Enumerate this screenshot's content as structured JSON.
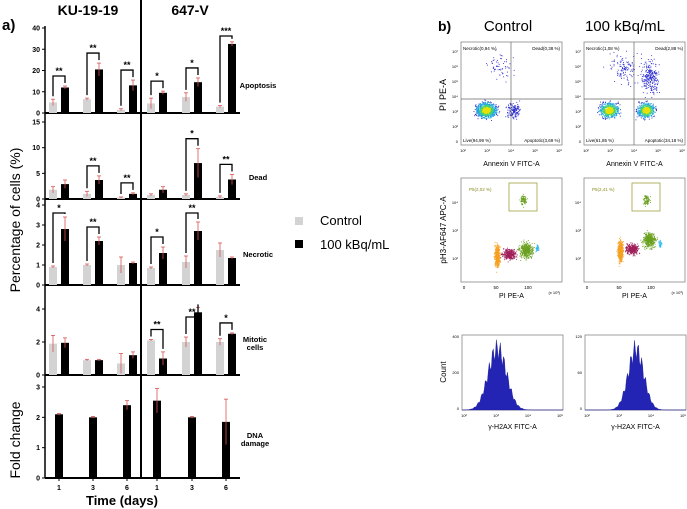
{
  "chart_data": [
    {
      "type": "bar",
      "panel_label": "a)",
      "cell_lines": [
        "KU-19-19",
        "647-V"
      ],
      "categories": [
        "1",
        "3",
        "6"
      ],
      "xlabel": "Time (days)",
      "ylabel_percentage": "Percentage of cells (%)",
      "ylabel_fold": "Fold change",
      "legend": {
        "placement": "right",
        "entries": [
          {
            "name": "Control",
            "color": "#d3d3d3"
          },
          {
            "name": "100 kBq/mL",
            "color": "#000000"
          }
        ]
      },
      "error_bar_color": "#d9534f",
      "rows": [
        {
          "label": "Apoptosis",
          "ylim": [
            0,
            40
          ],
          "yticks": [
            "0",
            "10",
            "20",
            "30",
            "40"
          ],
          "control": {
            "values": [
              5,
              6.5,
              1.5,
              4.5,
              7.5,
              3
            ],
            "errors": [
              1.5,
              0.5,
              0.5,
              2.5,
              2,
              0.5
            ]
          },
          "treated": {
            "values": [
              12,
              20.5,
              13,
              9.5,
              14.5,
              32.5
            ],
            "errors": [
              0.7,
              3,
              2.5,
              0.8,
              2,
              1
            ]
          },
          "significance": [
            "**",
            "**",
            "**",
            "*",
            "*",
            "***"
          ]
        },
        {
          "label": "Dead",
          "ylim": [
            0,
            15
          ],
          "yticks": [
            "0",
            "5",
            "10",
            "15"
          ],
          "control": {
            "values": [
              1.8,
              1,
              0.3,
              0.8,
              0.8,
              0.4
            ],
            "errors": [
              0.6,
              0.5,
              0.1,
              0.2,
              0.2,
              0.2
            ]
          },
          "treated": {
            "values": [
              2.9,
              3.7,
              1.0,
              1.8,
              7,
              3.8
            ],
            "errors": [
              0.8,
              0.8,
              0.2,
              0.6,
              2.8,
              1
            ]
          },
          "significance": [
            "",
            "**",
            "**",
            "",
            "*",
            "**"
          ]
        },
        {
          "label": "Necrotic",
          "ylim": [
            0,
            4
          ],
          "yticks": [
            "0",
            "1",
            "2",
            "3",
            "4"
          ],
          "control": {
            "values": [
              0.9,
              1,
              1,
              0.85,
              1.15,
              1.75
            ],
            "errors": [
              0.05,
              0.05,
              0.4,
              0.05,
              0.3,
              0.35
            ]
          },
          "treated": {
            "values": [
              2.8,
              2.2,
              1.1,
              1.6,
              2.7,
              1.35
            ],
            "errors": [
              0.6,
              0.2,
              0.05,
              0.3,
              0.45,
              0.05
            ]
          },
          "significance": [
            "*",
            "**",
            "",
            "*",
            "**",
            ""
          ]
        },
        {
          "label": "Mitotic cells",
          "ylim": [
            0,
            4
          ],
          "yticks": [
            "0",
            "2",
            "4"
          ],
          "control": {
            "values": [
              1.9,
              0.9,
              0.7,
              2.1,
              2,
              2
            ],
            "errors": [
              0.5,
              0.05,
              0.6,
              0.05,
              0.3,
              0.2
            ]
          },
          "treated": {
            "values": [
              1.95,
              0.9,
              1.2,
              1,
              3.8,
              2.5
            ],
            "errors": [
              0.3,
              0.05,
              0.2,
              0.4,
              0.3,
              0.05
            ]
          },
          "significance": [
            "",
            "",
            "",
            "**",
            "**",
            "*"
          ]
        },
        {
          "label": "DNA damage",
          "ylim": [
            0,
            3
          ],
          "yticks": [
            "0",
            "1",
            "2",
            "3"
          ],
          "treated": {
            "values": [
              2.1,
              2,
              2.4,
              2.55,
              2,
              1.85
            ],
            "errors": [
              0.03,
              0.03,
              0.15,
              0.4,
              0.03,
              0.75
            ]
          },
          "significance": [
            "",
            "",
            "",
            "",
            "",
            ""
          ]
        }
      ]
    },
    {
      "type": "scatter",
      "panel_label": "b)",
      "conditions": [
        "Control",
        "100 kBq/mL"
      ],
      "annexin": {
        "xlabel": "Annexin V FITC-A",
        "ylabel": "PI PE-A",
        "xticks": [
          "10²",
          "10³",
          "10⁴",
          "10⁵",
          "10⁶"
        ],
        "yticks": [
          "0",
          "10²",
          "10³",
          "10⁴",
          "10⁵",
          "10⁶",
          "10⁷"
        ],
        "quadrants": [
          {
            "necrotic": "Necrotic(0,94 %)",
            "dead": "Dead(0,38 %)",
            "live": "Live(94,99 %)",
            "apoptotic": "Apoptotic(3,69 %)"
          },
          {
            "necrotic": "Necrotic(1,08 %)",
            "dead": "Dead(2,88 %)",
            "live": "Live(61,85 %)",
            "apoptotic": "Apoptotic(34,18 %)"
          }
        ]
      },
      "mitosis": {
        "xlabel": "PI PE-A",
        "ylabel": "pH3-AF647 APC-A",
        "xticks": [
          "0",
          "50",
          "100"
        ],
        "xunit": "(x 10³)",
        "yticks": [
          "10²",
          "10³",
          "10⁴"
        ],
        "gates": [
          "P5(2,02 %)",
          "P5(2,41 %)"
        ]
      }
    },
    {
      "type": "area",
      "xlabel": "γ-H2AX FITC-A",
      "ylabel": "Count",
      "xticks": [
        "10²",
        "10³",
        "10⁴",
        "10⁵"
      ],
      "yticks": [
        [
          "0",
          "200",
          "400"
        ],
        [
          "0",
          "60",
          "120"
        ]
      ],
      "color": "#2323b4"
    }
  ]
}
